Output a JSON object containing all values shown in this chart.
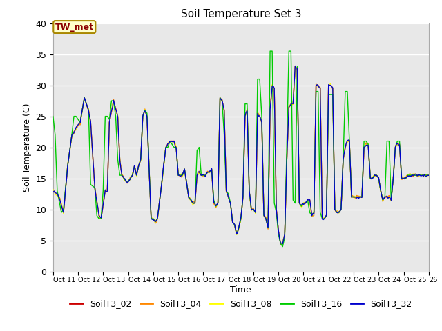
{
  "title": "Soil Temperature Set 3",
  "xlabel": "Time",
  "ylabel": "Soil Temperature (C)",
  "ylim": [
    0,
    40
  ],
  "bg_color": "#e8e8e8",
  "annotation_text": "TW_met",
  "annotation_box_color": "#ffffcc",
  "annotation_text_color": "#8b0000",
  "series_colors": {
    "SoilT3_02": "#cc0000",
    "SoilT3_04": "#ff8800",
    "SoilT3_08": "#ffff00",
    "SoilT3_16": "#00cc00",
    "SoilT3_32": "#0000cc"
  },
  "xtick_labels": [
    "Oct 11",
    "Oct 12",
    "Oct 13",
    "Oct 14",
    "Oct 15",
    "Oct 16",
    "Oct 17",
    "Oct 18",
    "Oct 19",
    "Oct 20",
    "Oct 21",
    "Oct 22",
    "Oct 23",
    "Oct 24",
    "Oct 25",
    "Oct 26"
  ],
  "ytick_positions": [
    0,
    5,
    10,
    15,
    20,
    25,
    30,
    35,
    40
  ],
  "num_points": 361
}
